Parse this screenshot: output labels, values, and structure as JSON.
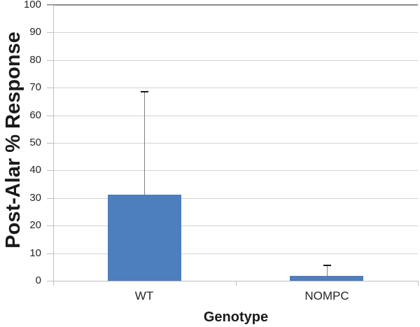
{
  "chart_data": {
    "type": "bar",
    "categories": [
      "WT",
      "NOMPC"
    ],
    "values": [
      31.2,
      1.9
    ],
    "error_plus": [
      37.4,
      3.8
    ],
    "xlabel": "Genotype",
    "ylabel": "Post-Alar % Response",
    "ylim": [
      0,
      100
    ],
    "yticks": [
      0,
      10,
      20,
      30,
      40,
      50,
      60,
      70,
      80,
      90,
      100
    ],
    "grid": true,
    "legend": false,
    "colors": {
      "bar": "#4D7EBD",
      "gridline": "#D3D3D3",
      "axis": "#BFBFBF",
      "top_line": "#8C8C8C",
      "error_line": "#808080",
      "error_cap": "#1a1a1a",
      "text": "#262626"
    }
  }
}
